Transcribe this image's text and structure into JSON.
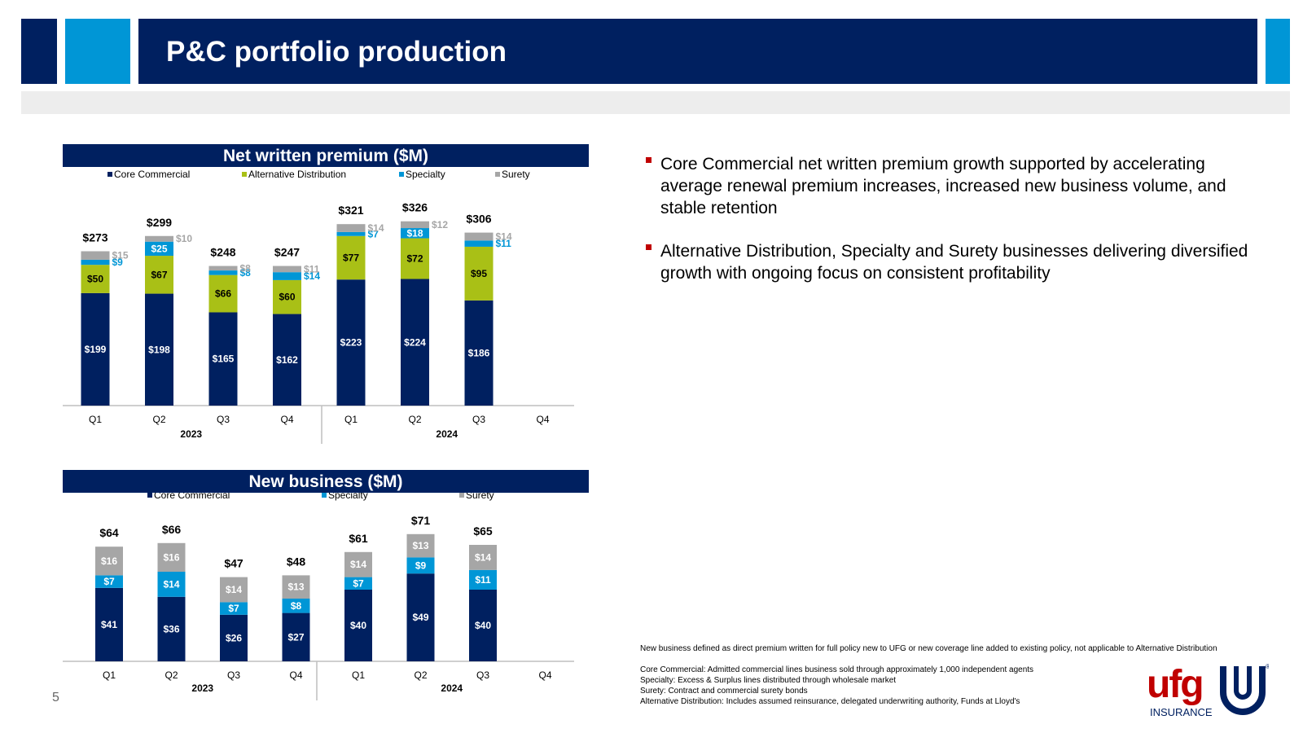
{
  "header": {
    "title": "P&C portfolio production"
  },
  "page_number": "5",
  "colors": {
    "navy": "#002060",
    "lime": "#A9C016",
    "blue": "#0096D6",
    "gray": "#A6A6A6",
    "red": "#C00000"
  },
  "bullets": [
    "Core Commercial net written premium growth supported by accelerating average renewal premium increases, increased new business volume, and stable retention",
    "Alternative Distribution, Specialty and Surety businesses delivering diversified growth with ongoing focus on consistent profitability"
  ],
  "footnotes": {
    "new_business": "New business defined as direct premium written for full policy new to UFG or new coverage line added to existing policy, not applicable to Alternative Distribution",
    "core": "Core Commercial: Admitted commercial lines business sold through approximately 1,000 independent agents",
    "specialty": "Specialty: Excess & Surplus lines distributed through wholesale market",
    "surety": "Surety: Contract and commercial surety bonds",
    "alt": "Alternative Distribution: Includes assumed reinsurance, delegated underwriting authority, Funds at Lloyd's"
  },
  "logo": {
    "text": "ufg",
    "sub": "INSURANCE",
    "mark": "®"
  },
  "chart_data": [
    {
      "type": "bar",
      "stacked": true,
      "title": "Net written premium ($M)",
      "categories": [
        "Q1",
        "Q2",
        "Q3",
        "Q4",
        "Q1",
        "Q2",
        "Q3",
        "Q4"
      ],
      "groups": [
        "2023",
        "2024"
      ],
      "series": [
        {
          "name": "Core Commercial",
          "color": "#002060",
          "values": [
            199,
            198,
            165,
            162,
            223,
            224,
            186,
            null
          ],
          "labels": [
            "$199",
            "$198",
            "$165",
            "$162",
            "$223",
            "$224",
            "$186",
            null
          ]
        },
        {
          "name": "Alternative Distribution",
          "color": "#A9C016",
          "values": [
            50,
            67,
            66,
            60,
            77,
            72,
            95,
            null
          ],
          "labels": [
            "$50",
            "$67",
            "$66",
            "$60",
            "$77",
            "$72",
            "$95",
            null
          ]
        },
        {
          "name": "Specialty",
          "color": "#0096D6",
          "values": [
            9,
            25,
            8,
            14,
            7,
            18,
            11,
            null
          ],
          "labels": [
            "$9",
            "$25",
            "$8",
            "$14",
            "$7",
            "$18",
            "$11",
            null
          ]
        },
        {
          "name": "Surety",
          "color": "#A6A6A6",
          "values": [
            15,
            10,
            8,
            11,
            14,
            12,
            14,
            null
          ],
          "labels": [
            "$15",
            "$10",
            "$8",
            "$11",
            "$14",
            "$12",
            "$14",
            null
          ]
        }
      ],
      "totals": [
        "$273",
        "$299",
        "$248",
        "$247",
        "$321",
        "$326",
        "$306",
        null
      ],
      "ylim": [
        0,
        340
      ]
    },
    {
      "type": "bar",
      "stacked": true,
      "title": "New business ($M)",
      "categories": [
        "Q1",
        "Q2",
        "Q3",
        "Q4",
        "Q1",
        "Q2",
        "Q3",
        "Q4"
      ],
      "groups": [
        "2023",
        "2024"
      ],
      "series": [
        {
          "name": "Core Commercial",
          "color": "#002060",
          "values": [
            41,
            36,
            26,
            27,
            40,
            49,
            40,
            null
          ],
          "labels": [
            "$41",
            "$36",
            "$26",
            "$27",
            "$40",
            "$49",
            "$40",
            null
          ]
        },
        {
          "name": "Specialty",
          "color": "#0096D6",
          "values": [
            7,
            14,
            7,
            8,
            7,
            9,
            11,
            null
          ],
          "labels": [
            "$7",
            "$14",
            "$7",
            "$8",
            "$7",
            "$9",
            "$11",
            null
          ]
        },
        {
          "name": "Surety",
          "color": "#A6A6A6",
          "values": [
            16,
            16,
            14,
            13,
            14,
            13,
            14,
            null
          ],
          "labels": [
            "$16",
            "$16",
            "$14",
            "$13",
            "$14",
            "$13",
            "$14",
            null
          ]
        }
      ],
      "totals": [
        "$64",
        "$66",
        "$47",
        "$48",
        "$61",
        "$71",
        "$65",
        null
      ],
      "ylim": [
        0,
        80
      ]
    }
  ]
}
